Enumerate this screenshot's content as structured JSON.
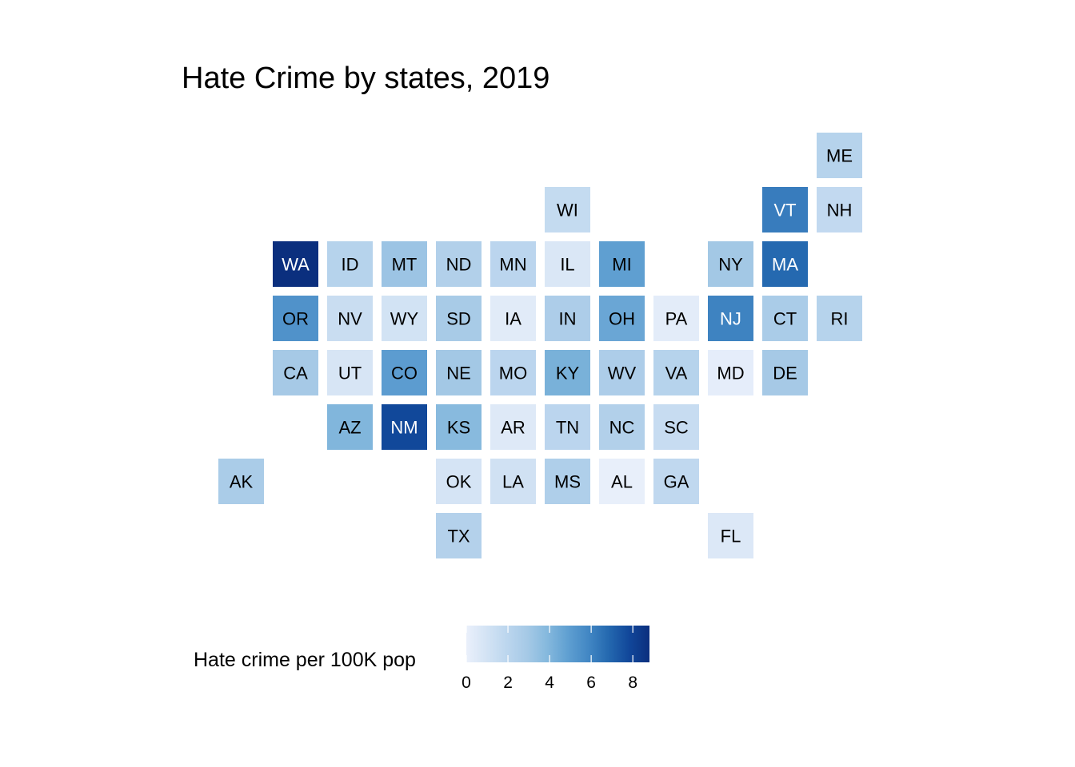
{
  "chart_data": {
    "type": "heatmap",
    "title": "Hate Crime by states, 2019",
    "legend": {
      "title": "Hate crime per 100K pop",
      "ticks": [
        0,
        2,
        4,
        6,
        8
      ],
      "range": [
        0,
        8.8
      ],
      "placement": "bottom"
    },
    "colors": {
      "low": "#EAF0FB",
      "mid": "#6FAAD5",
      "high": "#0B2F7E",
      "ramp": [
        "#EAF0FB",
        "#D3E3F4",
        "#BCD6EE",
        "#A5C9E6",
        "#84B8DD",
        "#5F9FD1",
        "#4287C4",
        "#2468AF",
        "#11479A",
        "#0B2F7E"
      ]
    },
    "grid_layout": "tile grid map, columns (west to east) and rows (north to south)",
    "states": [
      {
        "abbr": "ME",
        "col": 11,
        "row": 0,
        "value": 2.2
      },
      {
        "abbr": "WI",
        "col": 6,
        "row": 1,
        "value": 1.6
      },
      {
        "abbr": "VT",
        "col": 10,
        "row": 1,
        "value": 6.2
      },
      {
        "abbr": "NH",
        "col": 11,
        "row": 1,
        "value": 1.7
      },
      {
        "abbr": "WA",
        "col": 1,
        "row": 2,
        "value": 8.8
      },
      {
        "abbr": "ID",
        "col": 2,
        "row": 2,
        "value": 2.2
      },
      {
        "abbr": "MT",
        "col": 3,
        "row": 2,
        "value": 3.2
      },
      {
        "abbr": "ND",
        "col": 4,
        "row": 2,
        "value": 2.4
      },
      {
        "abbr": "MN",
        "col": 5,
        "row": 2,
        "value": 2.0
      },
      {
        "abbr": "IL",
        "col": 6,
        "row": 2,
        "value": 0.7
      },
      {
        "abbr": "MI",
        "col": 7,
        "row": 2,
        "value": 4.9
      },
      {
        "abbr": "NY",
        "col": 9,
        "row": 2,
        "value": 3.0
      },
      {
        "abbr": "MA",
        "col": 10,
        "row": 2,
        "value": 6.8
      },
      {
        "abbr": "OR",
        "col": 1,
        "row": 3,
        "value": 5.4
      },
      {
        "abbr": "NV",
        "col": 2,
        "row": 3,
        "value": 1.4
      },
      {
        "abbr": "WY",
        "col": 3,
        "row": 3,
        "value": 1.0
      },
      {
        "abbr": "SD",
        "col": 4,
        "row": 3,
        "value": 2.8
      },
      {
        "abbr": "IA",
        "col": 5,
        "row": 3,
        "value": 0.4
      },
      {
        "abbr": "IN",
        "col": 6,
        "row": 3,
        "value": 2.6
      },
      {
        "abbr": "OH",
        "col": 7,
        "row": 3,
        "value": 4.6
      },
      {
        "abbr": "PA",
        "col": 8,
        "row": 3,
        "value": 0.3
      },
      {
        "abbr": "NJ",
        "col": 9,
        "row": 3,
        "value": 6.0
      },
      {
        "abbr": "CT",
        "col": 10,
        "row": 3,
        "value": 2.7
      },
      {
        "abbr": "RI",
        "col": 11,
        "row": 3,
        "value": 2.2
      },
      {
        "abbr": "CA",
        "col": 1,
        "row": 4,
        "value": 2.9
      },
      {
        "abbr": "UT",
        "col": 2,
        "row": 4,
        "value": 0.8
      },
      {
        "abbr": "CO",
        "col": 3,
        "row": 4,
        "value": 5.0
      },
      {
        "abbr": "NE",
        "col": 4,
        "row": 4,
        "value": 3.0
      },
      {
        "abbr": "MO",
        "col": 5,
        "row": 4,
        "value": 2.0
      },
      {
        "abbr": "KY",
        "col": 6,
        "row": 4,
        "value": 4.2
      },
      {
        "abbr": "WV",
        "col": 7,
        "row": 4,
        "value": 2.6
      },
      {
        "abbr": "VA",
        "col": 8,
        "row": 4,
        "value": 2.2
      },
      {
        "abbr": "MD",
        "col": 9,
        "row": 4,
        "value": 0.2
      },
      {
        "abbr": "DE",
        "col": 10,
        "row": 4,
        "value": 2.9
      },
      {
        "abbr": "AZ",
        "col": 2,
        "row": 5,
        "value": 4.0
      },
      {
        "abbr": "NM",
        "col": 3,
        "row": 5,
        "value": 7.8
      },
      {
        "abbr": "KS",
        "col": 4,
        "row": 5,
        "value": 3.8
      },
      {
        "abbr": "AR",
        "col": 5,
        "row": 5,
        "value": 0.5
      },
      {
        "abbr": "TN",
        "col": 6,
        "row": 5,
        "value": 2.0
      },
      {
        "abbr": "NC",
        "col": 7,
        "row": 5,
        "value": 2.4
      },
      {
        "abbr": "SC",
        "col": 8,
        "row": 5,
        "value": 1.5
      },
      {
        "abbr": "AK",
        "col": 0,
        "row": 6,
        "value": 2.7
      },
      {
        "abbr": "OK",
        "col": 4,
        "row": 6,
        "value": 0.9
      },
      {
        "abbr": "LA",
        "col": 5,
        "row": 6,
        "value": 1.1
      },
      {
        "abbr": "MS",
        "col": 6,
        "row": 6,
        "value": 2.5
      },
      {
        "abbr": "AL",
        "col": 7,
        "row": 6,
        "value": 0.1
      },
      {
        "abbr": "GA",
        "col": 8,
        "row": 6,
        "value": 1.8
      },
      {
        "abbr": "TX",
        "col": 4,
        "row": 7,
        "value": 2.3
      },
      {
        "abbr": "FL",
        "col": 9,
        "row": 7,
        "value": 0.6
      }
    ]
  }
}
